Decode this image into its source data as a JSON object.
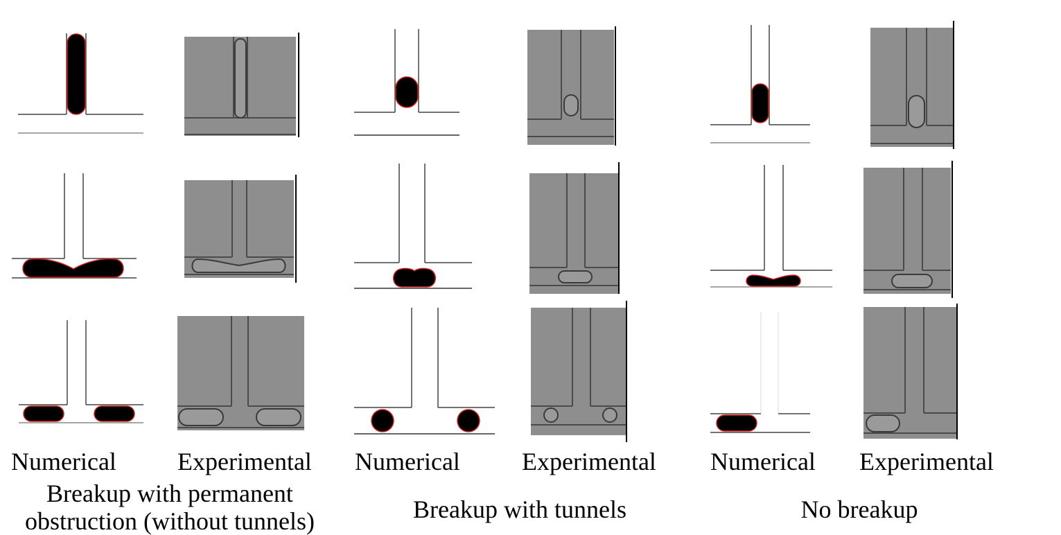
{
  "columns": [
    {
      "numerical_label": "Numerical",
      "experimental_label": "Experimental",
      "caption_line1": "Breakup with permanent",
      "caption_line2": "obstruction (without tunnels)"
    },
    {
      "numerical_label": "Numerical",
      "experimental_label": "Experimental",
      "caption_line1": "Breakup with tunnels",
      "caption_line2": ""
    },
    {
      "numerical_label": "Numerical",
      "experimental_label": "Experimental",
      "caption_line1": "No breakup",
      "caption_line2": ""
    }
  ],
  "colors": {
    "droplet": "#000000",
    "droplet_outline": "#cc2020",
    "channel_wall": "#333333",
    "experimental_bg": "#8e8e8e",
    "experimental_wall": "#4a4a4a"
  }
}
